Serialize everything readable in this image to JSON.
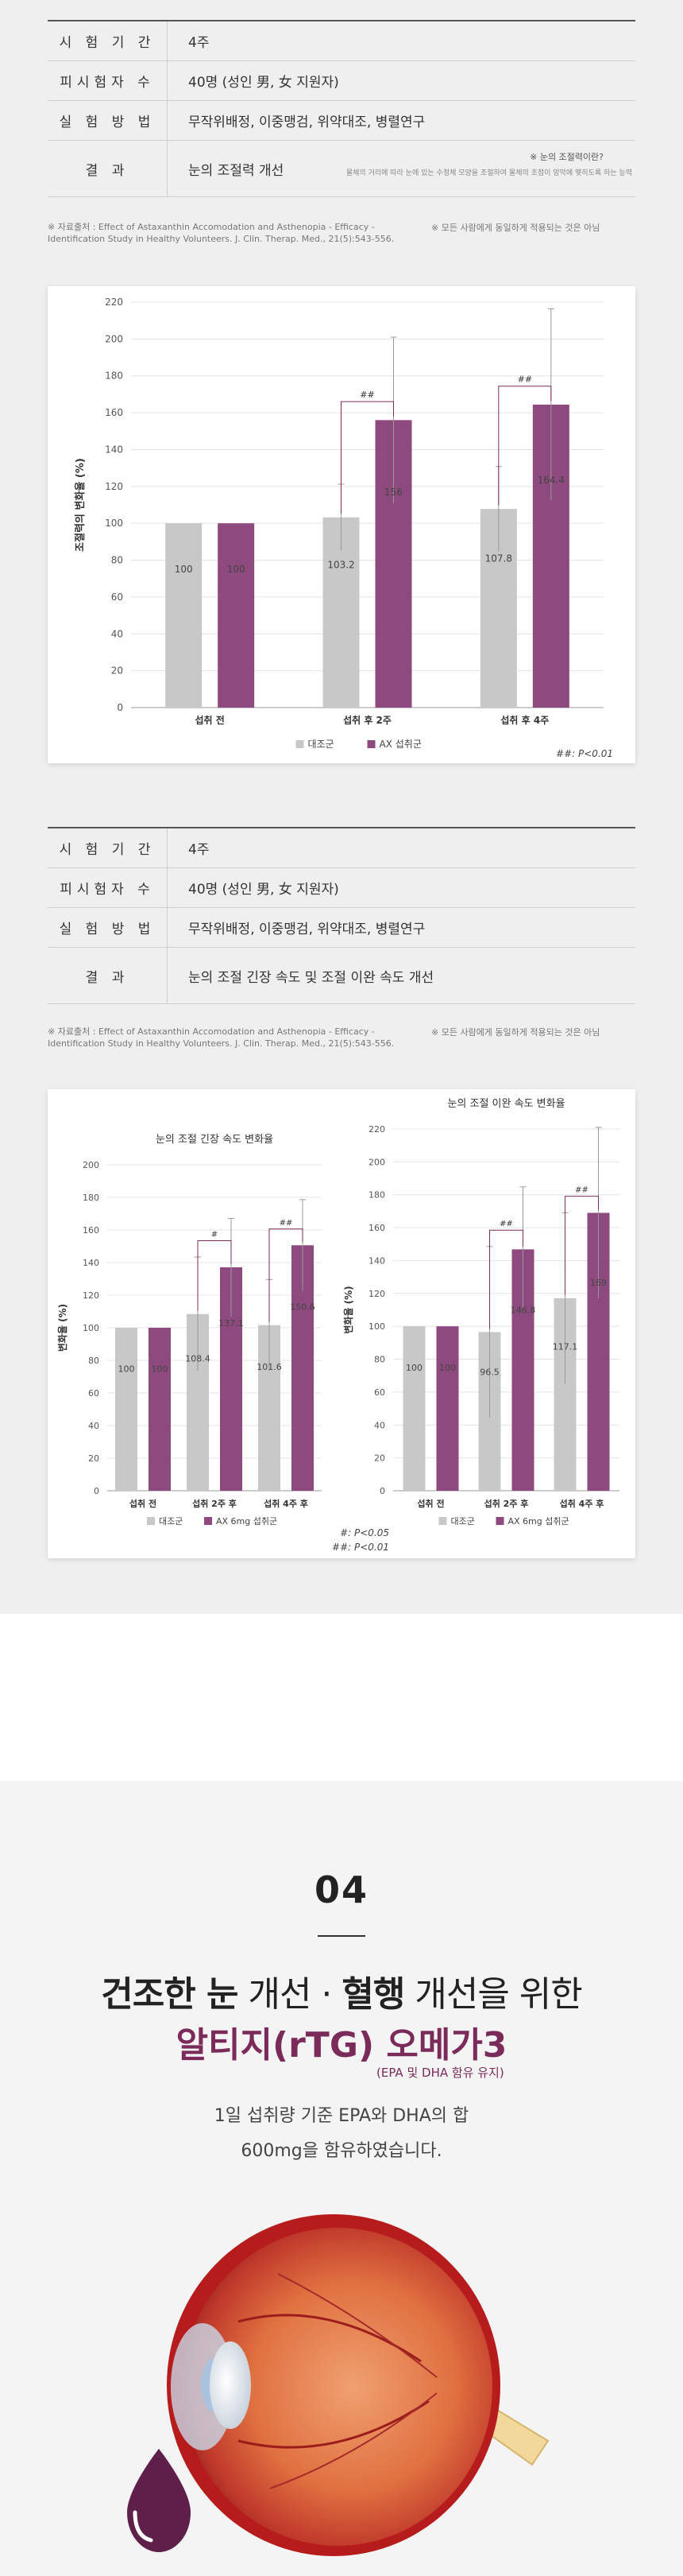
{
  "study1": {
    "rows": [
      {
        "key": "시 험 기 간",
        "value": "4주"
      },
      {
        "key": "피시험자 수",
        "value": "40명 (성인 男, 女 지원자)"
      },
      {
        "key": "실 험 방 법",
        "value": "무작위배정, 이중맹검, 위약대조, 병렬연구"
      },
      {
        "key": "결     과",
        "value": "눈의 조절력 개선"
      }
    ],
    "definition_title": "※ 눈의 조절력이란?",
    "definition_text": "물체의 거리에 따라 눈에 있는 수정체 모양을 조절하여 물체의 초점이 망막에 맺히도록 하는 능력",
    "source": "※ 자료출처 : Effect of Astaxanthin Accomodation and Asthenopia - Efficacy - Identification Study in Healthy Volunteers. J. Clin. Therap. Med., 21(5):543-556.",
    "disclaimer": "※ 모든 사람에게 동일하게 적용되는 것은 아님"
  },
  "study2": {
    "rows": [
      {
        "key": "시 험 기 간",
        "value": "4주"
      },
      {
        "key": "피시험자 수",
        "value": "40명 (성인 男, 女 지원자)"
      },
      {
        "key": "실 험 방 법",
        "value": "무작위배정, 이중맹검, 위약대조, 병렬연구"
      },
      {
        "key": "결     과",
        "value": "눈의 조절 긴장 속도 및 조절 이완 속도 개선"
      }
    ],
    "source": "※ 자료출처 : Effect of Astaxanthin Accomodation and Asthenopia - Efficacy - Identification Study in Healthy Volunteers. J. Clin. Therap. Med., 21(5):543-556.",
    "disclaimer": "※ 모든 사람에게 동일하게 적용되는 것은 아님"
  },
  "chart_data": [
    {
      "type": "bar",
      "title": "",
      "ylabel": "조절력의 변화율 (%)",
      "ylim": [
        0,
        220
      ],
      "yticks": [
        0,
        20,
        40,
        60,
        80,
        100,
        120,
        140,
        160,
        180,
        200,
        220
      ],
      "categories": [
        "섭취 전",
        "섭취 후 2주",
        "섭취 후 4주"
      ],
      "series": [
        {
          "name": "대조군",
          "color": "#c8c8c8",
          "values": [
            100,
            103.2,
            107.8
          ],
          "labels": [
            "100",
            "103.2",
            "107.8"
          ],
          "err": [
            0,
            18,
            23
          ]
        },
        {
          "name": "AX 섭취군",
          "color": "#8e4a7e",
          "values": [
            100,
            156,
            164.4
          ],
          "labels": [
            "100",
            "156",
            "164.4"
          ],
          "err": [
            0,
            45,
            52
          ]
        }
      ],
      "significance": [
        "",
        "##",
        "##"
      ],
      "footnotes": [
        "##: P<0.01"
      ],
      "grid": true,
      "legend": "bottom"
    },
    {
      "type": "bar",
      "title": "눈의 조절 긴장 속도 변화율",
      "ylabel": "변화율 (%)",
      "ylim": [
        0,
        200
      ],
      "yticks": [
        0,
        20,
        40,
        60,
        80,
        100,
        120,
        140,
        160,
        180,
        200
      ],
      "categories": [
        "섭취 전",
        "섭취 2주 후",
        "섭취 4주 후"
      ],
      "series": [
        {
          "name": "대조군",
          "color": "#c8c8c8",
          "values": [
            100,
            108.4,
            101.6
          ],
          "labels": [
            "100",
            "108.4",
            "101.6"
          ],
          "err": [
            0,
            35,
            28
          ]
        },
        {
          "name": "AX 6mg 섭취군",
          "color": "#8e4a7e",
          "values": [
            100,
            137.1,
            150.6
          ],
          "labels": [
            "100",
            "137.1",
            "150.6"
          ],
          "err": [
            0,
            30,
            28
          ]
        }
      ],
      "significance": [
        "",
        "#",
        "##"
      ],
      "grid": true,
      "legend": "bottom"
    },
    {
      "type": "bar",
      "title": "눈의 조절 이완 속도 변화율",
      "ylabel": "변화율 (%)",
      "ylim": [
        0,
        220
      ],
      "yticks": [
        0,
        20,
        40,
        60,
        80,
        100,
        120,
        140,
        160,
        180,
        200,
        220
      ],
      "categories": [
        "섭취 전",
        "섭취 2주 후",
        "섭취 4주 후"
      ],
      "series": [
        {
          "name": "대조군",
          "color": "#c8c8c8",
          "values": [
            100,
            96.5,
            117.1
          ],
          "labels": [
            "100",
            "96.5",
            "117.1"
          ],
          "err": [
            0,
            52,
            52
          ]
        },
        {
          "name": "AX 6mg 섭취군",
          "color": "#8e4a7e",
          "values": [
            100,
            146.8,
            169
          ],
          "labels": [
            "100",
            "146.8",
            "169"
          ],
          "err": [
            0,
            38,
            52
          ]
        }
      ],
      "significance": [
        "",
        "##",
        "##"
      ],
      "grid": true,
      "legend": "bottom"
    }
  ],
  "chart2_footnotes": [
    "#: P<0.05",
    "##: P<0.01"
  ],
  "section04": {
    "number": "04",
    "headline_parts": [
      "건조한 눈",
      " 개선 · ",
      "혈행",
      " 개선을 위한"
    ],
    "headline2": "알티지(rTG) 오메가3",
    "sub_note": "(EPA 및 DHA 함유 유지)",
    "desc_line1": "1일 섭취량 기준 EPA와 DHA의 합",
    "desc_line2": "600mg을 함유하였습니다."
  },
  "colors": {
    "control": "#c8c8c8",
    "treatment": "#8e4a7e",
    "accent": "#7b2b5a"
  }
}
